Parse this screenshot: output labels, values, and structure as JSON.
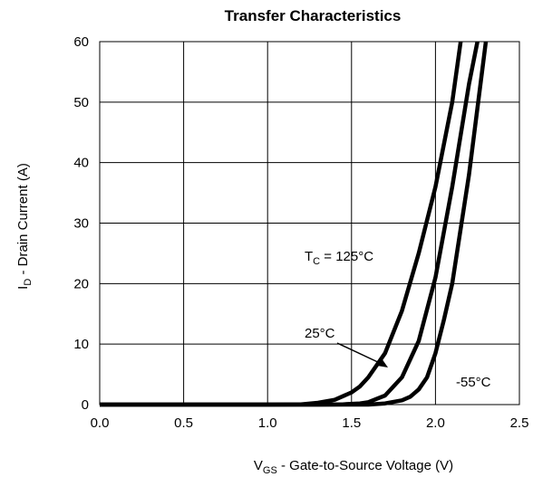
{
  "chart_data": {
    "type": "line",
    "title": "Transfer Characteristics",
    "xlabel": {
      "main": "V",
      "sub": "GS",
      "rest": " -  Gate-to-Source Voltage (V)"
    },
    "ylabel": {
      "main": "I",
      "sub": "D",
      "rest": " -  Drain Current (A)"
    },
    "xlim": [
      0.0,
      2.5
    ],
    "ylim": [
      0,
      60
    ],
    "x_ticks": [
      "0.0",
      "0.5",
      "1.0",
      "1.5",
      "2.0",
      "2.5"
    ],
    "y_ticks": [
      "0",
      "10",
      "20",
      "30",
      "40",
      "50",
      "60"
    ],
    "grid": true,
    "series": [
      {
        "name": "125°C",
        "x": [
          0.0,
          1.0,
          1.2,
          1.3,
          1.4,
          1.5,
          1.55,
          1.6,
          1.7,
          1.8,
          1.9,
          2.0,
          2.1,
          2.15
        ],
        "y": [
          0,
          0,
          0.05,
          0.3,
          0.8,
          2.0,
          3.0,
          4.5,
          8.5,
          15.5,
          25,
          36,
          50,
          60
        ]
      },
      {
        "name": "25°C",
        "x": [
          0.0,
          1.3,
          1.45,
          1.55,
          1.6,
          1.7,
          1.8,
          1.9,
          2.0,
          2.1,
          2.2,
          2.25
        ],
        "y": [
          0,
          0,
          0.05,
          0.2,
          0.4,
          1.5,
          4.5,
          10.5,
          21,
          36,
          53,
          60
        ]
      },
      {
        "name": "-55°C",
        "x": [
          0.0,
          1.6,
          1.7,
          1.8,
          1.85,
          1.9,
          1.95,
          2.0,
          2.05,
          2.1,
          2.2,
          2.3
        ],
        "y": [
          0,
          0,
          0.2,
          0.7,
          1.3,
          2.5,
          4.5,
          8.5,
          14,
          20,
          38,
          60
        ]
      }
    ],
    "annotations": {
      "tc_main": "T",
      "tc_sub": "C",
      "tc_rest": " = 125°C",
      "t25": "25°C",
      "tm55": "-55°C"
    }
  }
}
